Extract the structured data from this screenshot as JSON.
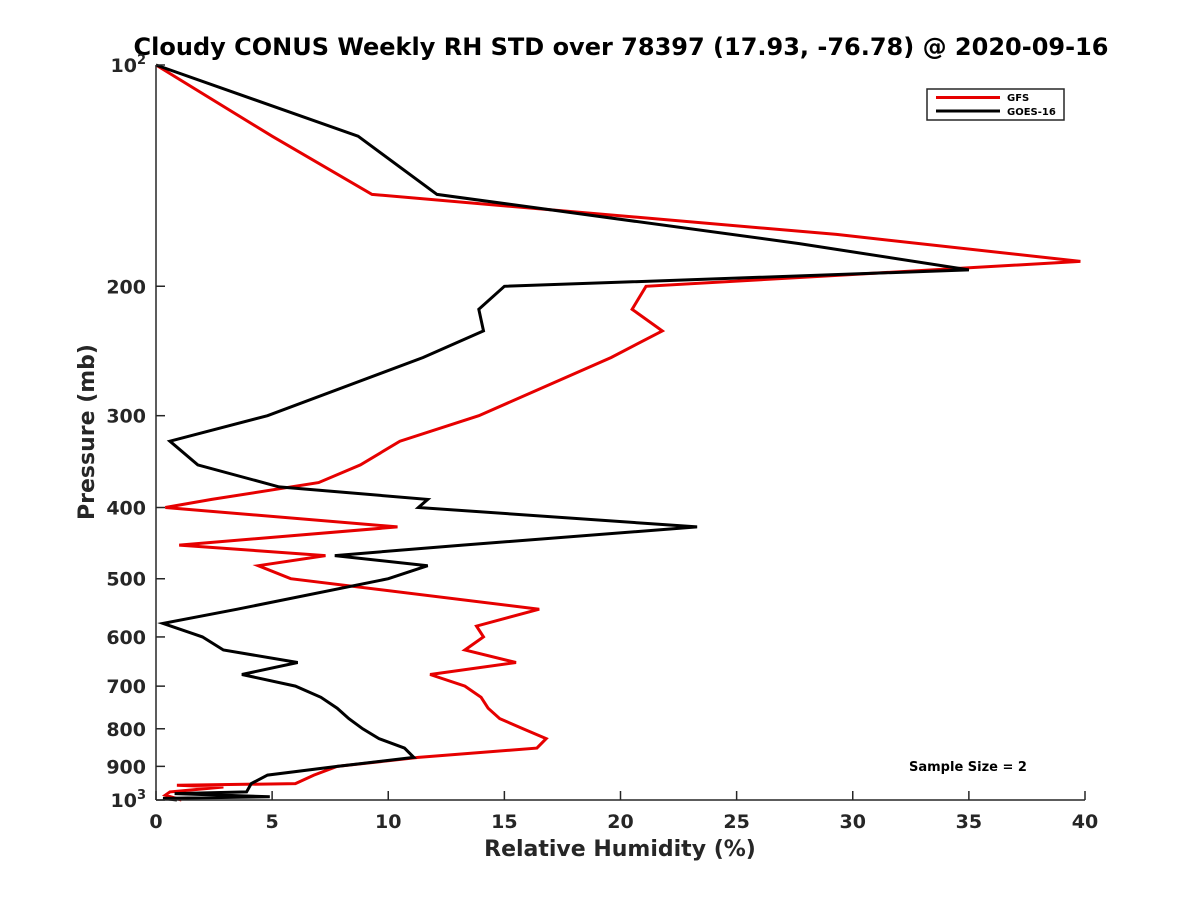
{
  "chart_data": {
    "type": "line",
    "title": "Cloudy CONUS Weekly RH STD over 78397 (17.93, -76.78) @ 2020-09-16",
    "xlabel": "Relative Humidity (%)",
    "ylabel": "Pressure (mb)",
    "xlim": [
      0,
      40
    ],
    "ylim": [
      100,
      1000
    ],
    "y_scale": "log",
    "y_reversed": true,
    "x_ticks": [
      0,
      5,
      10,
      15,
      20,
      25,
      30,
      35,
      40
    ],
    "y_ticks": [
      {
        "value": 100,
        "label": "10",
        "sup": "2"
      },
      {
        "value": 200,
        "label": "200",
        "sup": ""
      },
      {
        "value": 300,
        "label": "300",
        "sup": ""
      },
      {
        "value": 400,
        "label": "400",
        "sup": ""
      },
      {
        "value": 500,
        "label": "500",
        "sup": ""
      },
      {
        "value": 600,
        "label": "600",
        "sup": ""
      },
      {
        "value": 700,
        "label": "700",
        "sup": ""
      },
      {
        "value": 800,
        "label": "800",
        "sup": ""
      },
      {
        "value": 900,
        "label": "900",
        "sup": ""
      },
      {
        "value": 1000,
        "label": "10",
        "sup": "3"
      }
    ],
    "grid": false,
    "legend_position": "top-right",
    "annotation": "Sample Size = 2",
    "series": [
      {
        "name": "GFS",
        "color": "#e60000",
        "points": [
          [
            0.0,
            100
          ],
          [
            5.0,
            125
          ],
          [
            9.3,
            150
          ],
          [
            29.3,
            170
          ],
          [
            39.8,
            185
          ],
          [
            21.1,
            200
          ],
          [
            20.5,
            215
          ],
          [
            21.8,
            230
          ],
          [
            19.6,
            250
          ],
          [
            13.9,
            300
          ],
          [
            10.5,
            325
          ],
          [
            8.8,
            350
          ],
          [
            7.0,
            370
          ],
          [
            2.4,
            390
          ],
          [
            0.4,
            400
          ],
          [
            10.4,
            425
          ],
          [
            1.0,
            450
          ],
          [
            7.3,
            465
          ],
          [
            4.4,
            480
          ],
          [
            5.8,
            500
          ],
          [
            16.5,
            550
          ],
          [
            13.8,
            580
          ],
          [
            14.1,
            600
          ],
          [
            13.3,
            625
          ],
          [
            15.5,
            650
          ],
          [
            11.8,
            675
          ],
          [
            13.3,
            700
          ],
          [
            14.0,
            725
          ],
          [
            14.3,
            750
          ],
          [
            14.8,
            775
          ],
          [
            15.8,
            800
          ],
          [
            16.8,
            825
          ],
          [
            16.4,
            850
          ],
          [
            11.3,
            875
          ],
          [
            7.8,
            900
          ],
          [
            6.8,
            925
          ],
          [
            6.0,
            950
          ],
          [
            0.9,
            955
          ],
          [
            2.9,
            960
          ],
          [
            0.6,
            975
          ],
          [
            0.4,
            985
          ],
          [
            1.1,
            1000
          ]
        ]
      },
      {
        "name": "GOES-16",
        "color": "#000000",
        "points": [
          [
            0.0,
            100
          ],
          [
            8.7,
            125
          ],
          [
            12.1,
            150
          ],
          [
            27.7,
            175
          ],
          [
            35.0,
            190
          ],
          [
            15.0,
            200
          ],
          [
            13.9,
            215
          ],
          [
            14.1,
            230
          ],
          [
            11.5,
            250
          ],
          [
            4.8,
            300
          ],
          [
            0.6,
            325
          ],
          [
            1.8,
            350
          ],
          [
            5.3,
            375
          ],
          [
            11.7,
            390
          ],
          [
            11.3,
            400
          ],
          [
            23.3,
            425
          ],
          [
            13.2,
            450
          ],
          [
            7.7,
            465
          ],
          [
            11.7,
            480
          ],
          [
            10.0,
            500
          ],
          [
            3.5,
            550
          ],
          [
            0.3,
            575
          ],
          [
            2.0,
            600
          ],
          [
            2.9,
            625
          ],
          [
            6.1,
            650
          ],
          [
            3.7,
            675
          ],
          [
            6.0,
            700
          ],
          [
            7.1,
            725
          ],
          [
            7.8,
            750
          ],
          [
            8.3,
            775
          ],
          [
            8.9,
            800
          ],
          [
            9.6,
            825
          ],
          [
            10.7,
            850
          ],
          [
            11.1,
            875
          ],
          [
            7.8,
            900
          ],
          [
            4.8,
            925
          ],
          [
            4.1,
            950
          ],
          [
            3.9,
            975
          ],
          [
            0.8,
            980
          ],
          [
            4.9,
            990
          ],
          [
            0.3,
            995
          ],
          [
            0.9,
            1000
          ]
        ]
      }
    ]
  }
}
